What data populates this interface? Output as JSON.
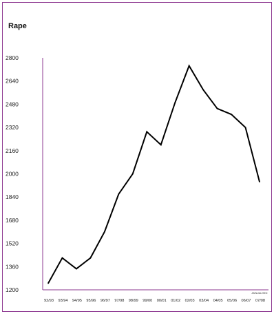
{
  "chart_data": {
    "type": "line",
    "title": "Rape",
    "xlabel": "",
    "ylabel": "",
    "categories": [
      "92/93",
      "93/94",
      "94/95",
      "95/96",
      "96/97",
      "97/98",
      "98/99",
      "99/00",
      "00/01",
      "01/02",
      "02/03",
      "03/04",
      "04/05",
      "05/06",
      "06/07",
      "07/08"
    ],
    "values": [
      1245,
      1420,
      1345,
      1420,
      1600,
      1860,
      2000,
      2290,
      2200,
      2490,
      2745,
      2580,
      2450,
      2410,
      2320,
      1945
    ],
    "ylim": [
      1200,
      2800
    ],
    "yticks": [
      1200,
      1360,
      1520,
      1680,
      1840,
      2000,
      2160,
      2320,
      2480,
      2640,
      2800
    ],
    "annotation": "ANNUALISED",
    "colors": {
      "axis": "#8e3a92",
      "line": "#000000",
      "frame": "#8e3a92"
    },
    "grid": false
  }
}
